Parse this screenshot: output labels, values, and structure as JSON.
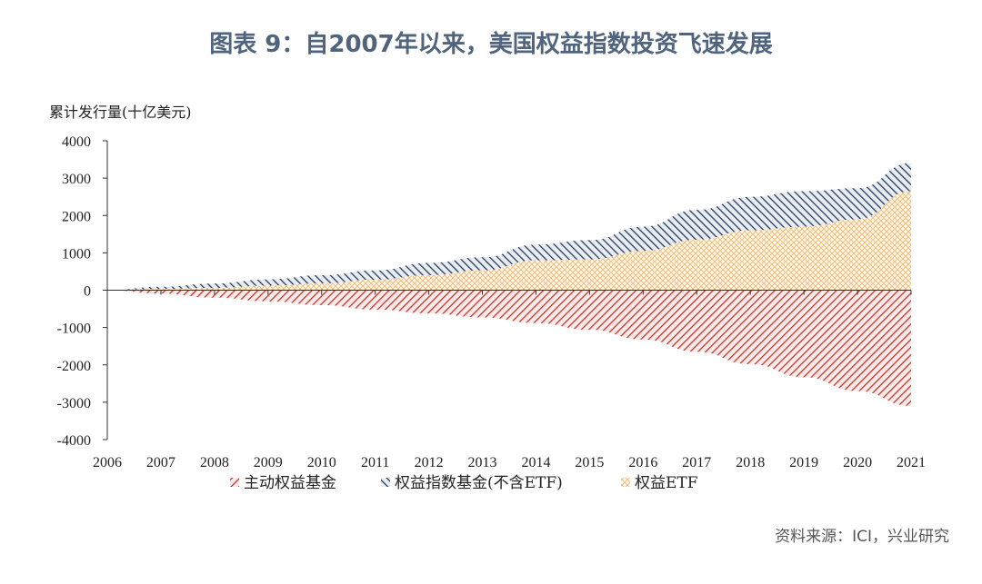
{
  "title": "图表 9：自2007年以来，美国权益指数投资飞速发展",
  "source": "资料来源：ICI，兴业研究",
  "chart_data": {
    "type": "area",
    "ylabel": "累计发行量(十亿美元)",
    "xlabel": "",
    "ylim": [
      -4000,
      4000
    ],
    "yticks": [
      4000,
      3000,
      2000,
      1000,
      0,
      -1000,
      -2000,
      -3000,
      -4000
    ],
    "x": [
      "2006",
      "2007",
      "2008",
      "2009",
      "2010",
      "2011",
      "2012",
      "2013",
      "2014",
      "2015",
      "2016",
      "2017",
      "2018",
      "2019",
      "2020",
      "2021"
    ],
    "series": [
      {
        "name": "主动权益基金",
        "color": "#c0392b",
        "pattern": "diag-red",
        "values": [
          0,
          -90,
          -200,
          -300,
          -400,
          -520,
          -620,
          -730,
          -880,
          -1060,
          -1320,
          -1650,
          -1980,
          -2330,
          -2700,
          -3100
        ]
      },
      {
        "name": "权益指数基金(不含ETF)",
        "color": "#2c3e5c",
        "pattern": "diag-navy",
        "values": [
          0,
          60,
          120,
          170,
          220,
          250,
          330,
          350,
          420,
          520,
          650,
          800,
          900,
          950,
          830,
          750
        ]
      },
      {
        "name": "权益ETF",
        "color": "#f0c080",
        "pattern": "cross-orange",
        "values": [
          0,
          30,
          60,
          120,
          180,
          280,
          400,
          530,
          800,
          820,
          1050,
          1350,
          1600,
          1700,
          1900,
          2650
        ]
      }
    ],
    "stacked_positive": true,
    "grid": false,
    "legend": "bottom"
  }
}
